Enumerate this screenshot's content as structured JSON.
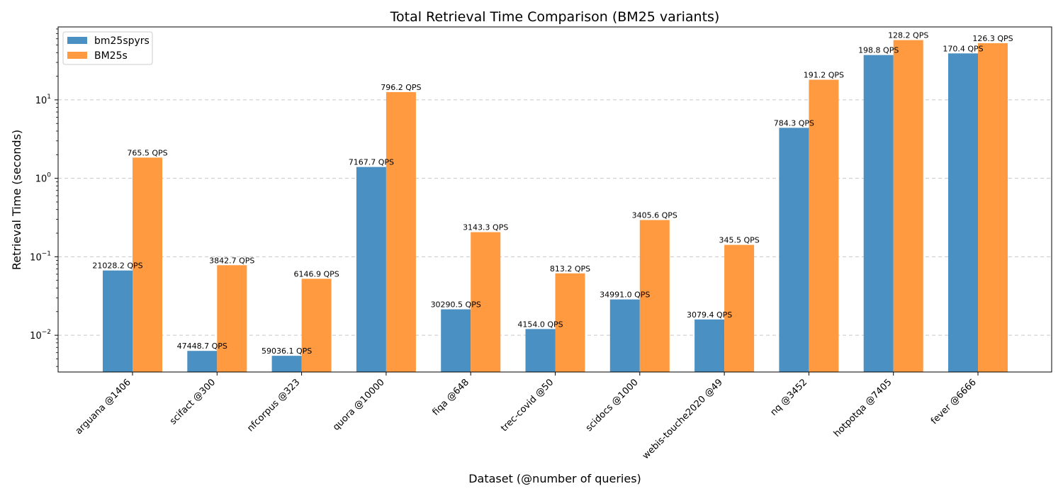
{
  "chart_data": {
    "type": "bar",
    "title": "Total Retrieval Time Comparison (BM25 variants)",
    "xlabel": "Dataset (@number of queries)",
    "ylabel": "Retrieval Time (seconds)",
    "yscale": "log",
    "ylim": [
      0.0034,
      85
    ],
    "grid": "y dashed",
    "legend": "top-left",
    "categories": [
      "arguana @1406",
      "scifact @300",
      "nfcorpus @323",
      "quora @10000",
      "fiqa @648",
      "trec-covid @50",
      "scidocs @1000",
      "webis-touche2020 @49",
      "nq @3452",
      "hotpotqa @7405",
      "fever @6666"
    ],
    "yticks": [
      {
        "value": 0.01,
        "base": "10",
        "exp": "−2"
      },
      {
        "value": 0.1,
        "base": "10",
        "exp": "−1"
      },
      {
        "value": 1,
        "base": "10",
        "exp": "0"
      },
      {
        "value": 10,
        "base": "10",
        "exp": "1"
      }
    ],
    "series": [
      {
        "name": "bm25spyrs",
        "color": "#4a90c2",
        "values": [
          0.0669,
          0.00632,
          0.00547,
          1.395,
          0.0214,
          0.012,
          0.0286,
          0.0159,
          4.4,
          37.25,
          39.1
        ],
        "labels": [
          "21028.2 QPS",
          "47448.7 QPS",
          "59036.1 QPS",
          "7167.7 QPS",
          "30290.5 QPS",
          "4154.0 QPS",
          "34991.0 QPS",
          "3079.4 QPS",
          "784.3 QPS",
          "198.8 QPS",
          "170.4 QPS"
        ]
      },
      {
        "name": "BM25s",
        "color": "#ff9a40",
        "values": [
          1.837,
          0.0781,
          0.0525,
          12.56,
          0.206,
          0.0615,
          0.294,
          0.1418,
          18.05,
          57.76,
          52.78
        ],
        "labels": [
          "765.5 QPS",
          "3842.7 QPS",
          "6146.9 QPS",
          "796.2 QPS",
          "3143.3 QPS",
          "813.2 QPS",
          "3405.6 QPS",
          "345.5 QPS",
          "191.2 QPS",
          "128.2 QPS",
          "126.3 QPS"
        ]
      }
    ]
  }
}
